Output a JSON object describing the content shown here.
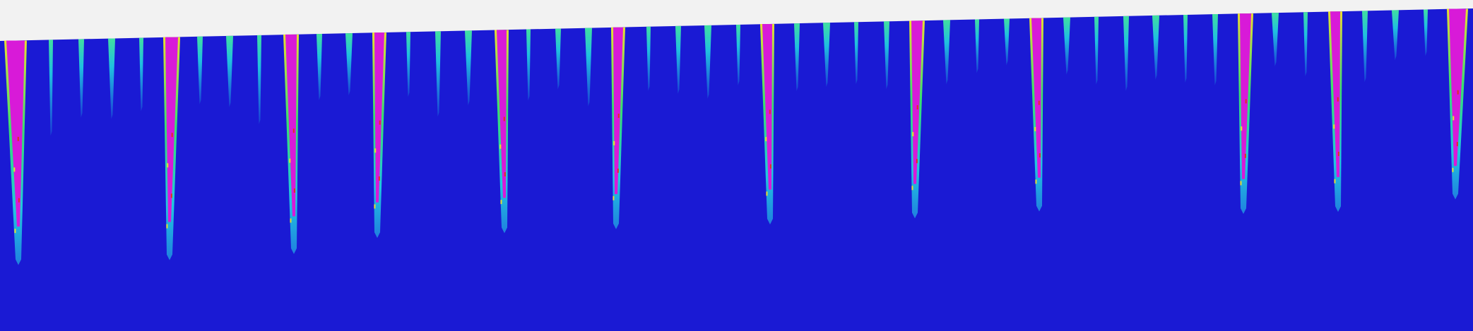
{
  "scene": {
    "kind": "simulation-field",
    "description_free": true
  },
  "colors": {
    "background": "#f2f2f2",
    "field": "#1a1ad4",
    "major_crack": "#d81ad8",
    "edge_cyan": "#20c8e0",
    "edge_green": "#38e070",
    "edge_yellow": "#e8e030",
    "edge_red": "#e03020",
    "minor_crack_top": "#30d8c0",
    "minor_crack_body": "#2070e0"
  },
  "icons": {
    "surface": "material-surface-icon",
    "crack": "crack-icon"
  }
}
